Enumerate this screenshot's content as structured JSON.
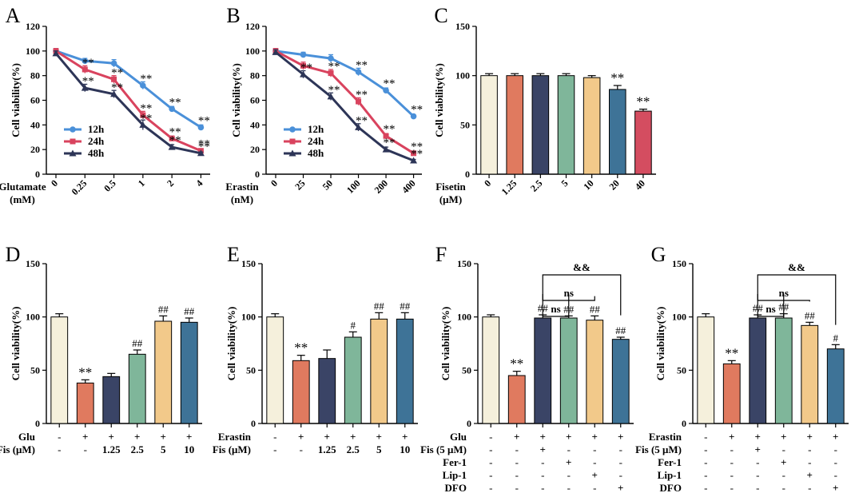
{
  "chart_data": [
    {
      "type": "line",
      "panel": "A",
      "ylabel": "Cell viability(%)",
      "xlabel": "Glutamate (mM)",
      "xlabel_lines": [
        "Glutamate",
        "(mM)"
      ],
      "categories": [
        "0",
        "0.25",
        "0.5",
        "1",
        "2",
        "4"
      ],
      "ylim": [
        0,
        120
      ],
      "yticks": [
        0,
        20,
        40,
        60,
        80,
        100,
        120
      ],
      "legend_position": "bottom-left",
      "series": [
        {
          "name": "12h",
          "color": "#4A90D9",
          "marker": "circle",
          "values": [
            100,
            92,
            90,
            72,
            53,
            38
          ],
          "errors": [
            2,
            2,
            3,
            3,
            2,
            2
          ],
          "labels": [
            "",
            "",
            "",
            "**",
            "**",
            "**"
          ]
        },
        {
          "name": "24h",
          "color": "#D9435E",
          "marker": "square",
          "values": [
            100,
            85,
            77,
            48,
            29,
            19
          ],
          "errors": [
            2,
            3,
            3,
            3,
            2,
            1
          ],
          "labels": [
            "",
            "**",
            "**",
            "**",
            "**",
            "**"
          ]
        },
        {
          "name": "48h",
          "color": "#2D3557",
          "marker": "triangle",
          "values": [
            98,
            70,
            65,
            40,
            22,
            17
          ],
          "errors": [
            2,
            3,
            3,
            4,
            2,
            1
          ],
          "labels": [
            "",
            "**",
            "**",
            "**",
            "**",
            "**"
          ]
        }
      ]
    },
    {
      "type": "line",
      "panel": "B",
      "ylabel": "Cell viability(%)",
      "xlabel": "Erastin (nM)",
      "xlabel_lines": [
        "Erastin",
        "(nM)"
      ],
      "categories": [
        "0",
        "25",
        "50",
        "100",
        "200",
        "400"
      ],
      "ylim": [
        0,
        120
      ],
      "yticks": [
        0,
        20,
        40,
        60,
        80,
        100,
        120
      ],
      "legend_position": "bottom-left",
      "series": [
        {
          "name": "12h",
          "color": "#4A90D9",
          "marker": "circle",
          "values": [
            100,
            97,
            94,
            83,
            68,
            47
          ],
          "errors": [
            2,
            2,
            3,
            3,
            2,
            1
          ],
          "labels": [
            "",
            "",
            "",
            "**",
            "**",
            "**"
          ]
        },
        {
          "name": "24h",
          "color": "#D9435E",
          "marker": "square",
          "values": [
            100,
            88,
            82,
            59,
            31,
            17
          ],
          "errors": [
            2,
            3,
            3,
            3,
            2,
            1
          ],
          "labels": [
            "",
            "",
            "**",
            "**",
            "**",
            "**"
          ]
        },
        {
          "name": "48h",
          "color": "#2D3557",
          "marker": "triangle",
          "values": [
            99,
            81,
            63,
            38,
            20,
            11
          ],
          "errors": [
            2,
            3,
            3,
            3,
            2,
            1
          ],
          "labels": [
            "",
            "**",
            "**",
            "**",
            "**",
            "**"
          ]
        }
      ]
    },
    {
      "type": "bar",
      "panel": "C",
      "ylabel": "Cell viability(%)",
      "xlabel": "Fisetin (μM)",
      "xlabel_lines": [
        "Fisetin",
        "(μM)"
      ],
      "categories": [
        "0",
        "1.25",
        "2.5",
        "5",
        "10",
        "20",
        "40"
      ],
      "values": [
        100,
        100,
        100,
        100,
        98,
        86,
        64
      ],
      "errors": [
        2,
        2,
        2,
        2,
        2,
        4,
        2
      ],
      "labels": [
        "",
        "",
        "",
        "",
        "",
        "**",
        "**"
      ],
      "colors": [
        "#F5F0DC",
        "#E07A5F",
        "#3A4466",
        "#7FB69A",
        "#F2C98A",
        "#3E7397",
        "#D44D60"
      ],
      "ylim": [
        0,
        150
      ],
      "yticks": [
        0,
        50,
        100,
        150
      ]
    },
    {
      "type": "bar",
      "panel": "D",
      "ylabel": "Cell viability(%)",
      "values": [
        100,
        38,
        44,
        65,
        96,
        95
      ],
      "errors": [
        3,
        3,
        3,
        4,
        5,
        4
      ],
      "labels": [
        "",
        "**",
        "",
        "##",
        "##",
        "##"
      ],
      "colors": [
        "#F5F0DC",
        "#E07A5F",
        "#3A4466",
        "#7FB69A",
        "#F2C98A",
        "#3E7397"
      ],
      "ylim": [
        0,
        150
      ],
      "yticks": [
        0,
        50,
        100,
        150
      ],
      "treatments": [
        {
          "label": "Glu",
          "values": [
            "-",
            "+",
            "+",
            "+",
            "+",
            "+"
          ]
        },
        {
          "label": "Fis (μM)",
          "values": [
            "-",
            "-",
            "1.25",
            "2.5",
            "5",
            "10"
          ]
        }
      ]
    },
    {
      "type": "bar",
      "panel": "E",
      "ylabel": "Cell viability(%)",
      "values": [
        100,
        59,
        61,
        81,
        98,
        98
      ],
      "errors": [
        3,
        5,
        8,
        5,
        6,
        6
      ],
      "labels": [
        "",
        "**",
        "",
        "#",
        "##",
        "##"
      ],
      "colors": [
        "#F5F0DC",
        "#E07A5F",
        "#3A4466",
        "#7FB69A",
        "#F2C98A",
        "#3E7397"
      ],
      "ylim": [
        0,
        150
      ],
      "yticks": [
        0,
        50,
        100,
        150
      ],
      "treatments": [
        {
          "label": "Erastin",
          "values": [
            "-",
            "+",
            "+",
            "+",
            "+",
            "+"
          ]
        },
        {
          "label": "Fis (μM)",
          "values": [
            "-",
            "-",
            "1.25",
            "2.5",
            "5",
            "10"
          ]
        }
      ]
    },
    {
      "type": "bar",
      "panel": "F",
      "ylabel": "Cell viability(%)",
      "values": [
        100,
        45,
        99,
        99,
        97,
        79
      ],
      "errors": [
        2,
        4,
        3,
        2,
        4,
        2
      ],
      "labels": [
        "",
        "**",
        "##",
        "##",
        "##",
        "##"
      ],
      "colors": [
        "#F5F0DC",
        "#E07A5F",
        "#3A4466",
        "#7FB69A",
        "#F2C98A",
        "#3E7397"
      ],
      "ylim": [
        0,
        150
      ],
      "yticks": [
        0,
        50,
        100,
        150
      ],
      "brackets": [
        {
          "from": 2,
          "to": 3,
          "label": "ns"
        },
        {
          "from": 2,
          "to": 4,
          "label": "ns"
        },
        {
          "from": 2,
          "to": 5,
          "label": "&&"
        }
      ],
      "treatments": [
        {
          "label": "Glu",
          "values": [
            "-",
            "+",
            "+",
            "+",
            "+",
            "+"
          ]
        },
        {
          "label": "Fis (5 μM)",
          "values": [
            "-",
            "-",
            "+",
            "-",
            "-",
            "-"
          ]
        },
        {
          "label": "Fer-1",
          "values": [
            "-",
            "-",
            "-",
            "+",
            "-",
            "-"
          ]
        },
        {
          "label": "Lip-1",
          "values": [
            "-",
            "-",
            "-",
            "-",
            "+",
            "-"
          ]
        },
        {
          "label": "DFO",
          "values": [
            "-",
            "-",
            "-",
            "-",
            "-",
            "+"
          ]
        }
      ]
    },
    {
      "type": "bar",
      "panel": "G",
      "ylabel": "Cell viability(%)",
      "values": [
        100,
        56,
        99,
        99,
        92,
        70
      ],
      "errors": [
        3,
        3,
        3,
        4,
        3,
        4
      ],
      "labels": [
        "",
        "**",
        "##",
        "##",
        "##",
        "#"
      ],
      "colors": [
        "#F5F0DC",
        "#E07A5F",
        "#3A4466",
        "#7FB69A",
        "#F2C98A",
        "#3E7397"
      ],
      "ylim": [
        0,
        150
      ],
      "yticks": [
        0,
        50,
        100,
        150
      ],
      "brackets": [
        {
          "from": 2,
          "to": 3,
          "label": "ns"
        },
        {
          "from": 2,
          "to": 4,
          "label": "ns"
        },
        {
          "from": 2,
          "to": 5,
          "label": "&&"
        }
      ],
      "treatments": [
        {
          "label": "Erastin",
          "values": [
            "-",
            "+",
            "+",
            "+",
            "+",
            "+"
          ]
        },
        {
          "label": "Fis (5 μM)",
          "values": [
            "-",
            "-",
            "+",
            "-",
            "-",
            "-"
          ]
        },
        {
          "label": "Fer-1",
          "values": [
            "-",
            "-",
            "-",
            "+",
            "-",
            "-"
          ]
        },
        {
          "label": "Lip-1",
          "values": [
            "-",
            "-",
            "-",
            "-",
            "+",
            "-"
          ]
        },
        {
          "label": "DFO",
          "values": [
            "-",
            "-",
            "-",
            "-",
            "-",
            "+"
          ]
        }
      ]
    }
  ]
}
